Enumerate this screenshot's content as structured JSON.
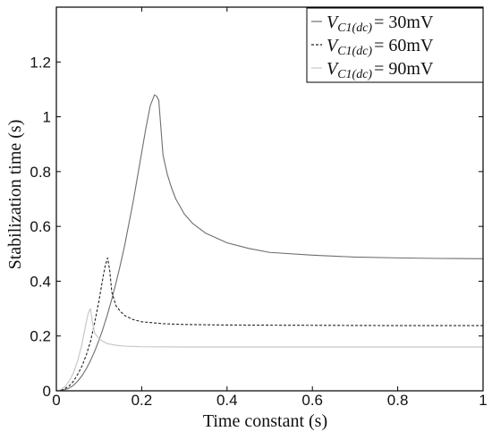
{
  "chart_data": {
    "type": "line",
    "xlabel": "Time constant (s)",
    "ylabel": "Stabilization time (s)",
    "xlim": [
      0,
      1
    ],
    "ylim": [
      0,
      1.4
    ],
    "x_ticks": [
      "0",
      "0.2",
      "0.4",
      "0.6",
      "0.8",
      "1"
    ],
    "y_ticks": [
      "0",
      "0.2",
      "0.4",
      "0.6",
      "0.8",
      "1",
      "1.2"
    ],
    "grid": false,
    "legend_position": "top-right",
    "series": [
      {
        "legend_prefix": "V",
        "legend_subscript": "C1(dc)",
        "legend_value": "= 30mV",
        "color": "#6e6e6e",
        "dash": "solid",
        "x": [
          0,
          0.01,
          0.02,
          0.03,
          0.04,
          0.05,
          0.06,
          0.07,
          0.08,
          0.09,
          0.1,
          0.11,
          0.12,
          0.13,
          0.14,
          0.15,
          0.16,
          0.17,
          0.18,
          0.19,
          0.2,
          0.21,
          0.22,
          0.23,
          0.235,
          0.24,
          0.25,
          0.26,
          0.27,
          0.28,
          0.3,
          0.32,
          0.35,
          0.4,
          0.45,
          0.5,
          0.6,
          0.7,
          0.8,
          0.9,
          1.0
        ],
        "y": [
          0,
          0.001,
          0.004,
          0.01,
          0.02,
          0.035,
          0.055,
          0.08,
          0.11,
          0.145,
          0.185,
          0.23,
          0.28,
          0.335,
          0.395,
          0.46,
          0.53,
          0.61,
          0.69,
          0.78,
          0.87,
          0.96,
          1.04,
          1.08,
          1.075,
          1.06,
          0.86,
          0.79,
          0.74,
          0.7,
          0.645,
          0.61,
          0.575,
          0.54,
          0.52,
          0.505,
          0.495,
          0.488,
          0.485,
          0.483,
          0.482
        ]
      },
      {
        "legend_prefix": "V",
        "legend_subscript": "C1(dc)",
        "legend_value": "= 60mV",
        "color": "#222222",
        "dash": "3,2",
        "x": [
          0,
          0.01,
          0.02,
          0.03,
          0.04,
          0.05,
          0.06,
          0.07,
          0.08,
          0.09,
          0.1,
          0.11,
          0.115,
          0.12,
          0.125,
          0.13,
          0.14,
          0.15,
          0.16,
          0.18,
          0.2,
          0.25,
          0.3,
          0.4,
          0.6,
          0.8,
          1.0
        ],
        "y": [
          0,
          0.002,
          0.008,
          0.018,
          0.035,
          0.06,
          0.09,
          0.13,
          0.18,
          0.25,
          0.33,
          0.42,
          0.46,
          0.485,
          0.44,
          0.36,
          0.31,
          0.29,
          0.275,
          0.26,
          0.252,
          0.245,
          0.242,
          0.24,
          0.239,
          0.238,
          0.238
        ]
      },
      {
        "legend_prefix": "V",
        "legend_subscript": "C1(dc)",
        "legend_value": "= 90mV",
        "color": "#c8c8c8",
        "dash": "solid",
        "x": [
          0,
          0.01,
          0.02,
          0.03,
          0.04,
          0.05,
          0.06,
          0.07,
          0.075,
          0.08,
          0.085,
          0.09,
          0.1,
          0.11,
          0.12,
          0.14,
          0.16,
          0.2,
          0.3,
          0.5,
          0.8,
          1.0
        ],
        "y": [
          0,
          0.004,
          0.015,
          0.035,
          0.065,
          0.11,
          0.17,
          0.25,
          0.285,
          0.3,
          0.245,
          0.21,
          0.19,
          0.18,
          0.172,
          0.166,
          0.163,
          0.161,
          0.16,
          0.16,
          0.16,
          0.16
        ]
      }
    ]
  }
}
